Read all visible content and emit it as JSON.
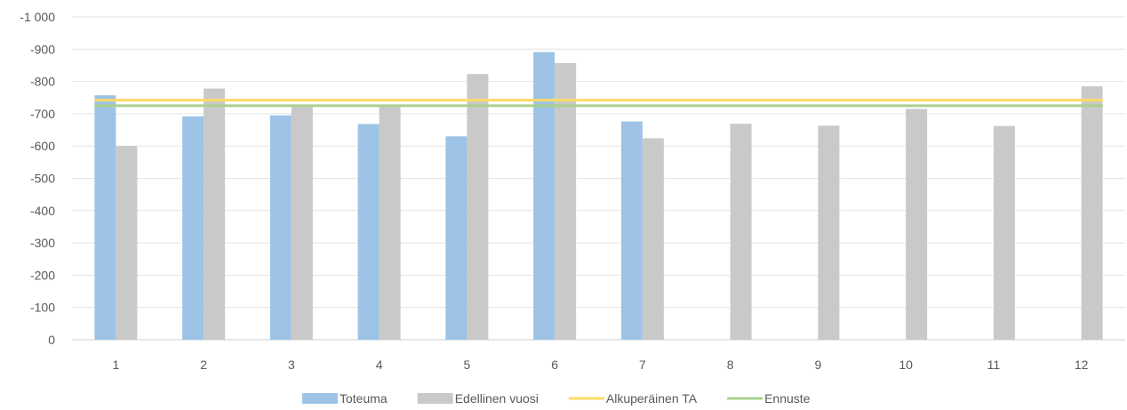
{
  "chart_data": {
    "type": "bar",
    "categories": [
      "1",
      "2",
      "3",
      "4",
      "5",
      "6",
      "7",
      "8",
      "9",
      "10",
      "11",
      "12"
    ],
    "y_tick_labels": [
      "0",
      "-100",
      "-200",
      "-300",
      "-400",
      "-500",
      "-600",
      "-700",
      "-800",
      "-900",
      "-1 000"
    ],
    "ylim": [
      0,
      -1000
    ],
    "y_axis_inverted": true,
    "grid": true,
    "legend_position": "bottom",
    "series": [
      {
        "name": "Toteuma",
        "kind": "bar",
        "color": "#9dc3e6",
        "values": [
          -757,
          -692,
          -695,
          -668,
          -630,
          -891,
          -676,
          null,
          null,
          null,
          null,
          null
        ]
      },
      {
        "name": "Edellinen vuosi",
        "kind": "bar",
        "color": "#c9c9c9",
        "values": [
          -600,
          -778,
          -727,
          -728,
          -823,
          -857,
          -624,
          -669,
          -663,
          -715,
          -662,
          -785
        ]
      },
      {
        "name": "Alkuperäinen TA",
        "kind": "line",
        "color": "#ffd966",
        "values": [
          -742,
          -742,
          -742,
          -742,
          -742,
          -742,
          -742,
          -742,
          -742,
          -742,
          -742,
          -742
        ]
      },
      {
        "name": "Ennuste",
        "kind": "line",
        "color": "#a9d18e",
        "values": [
          -725,
          -725,
          -725,
          -725,
          -725,
          -725,
          -725,
          -725,
          -725,
          -725,
          -725,
          -725
        ]
      }
    ]
  }
}
